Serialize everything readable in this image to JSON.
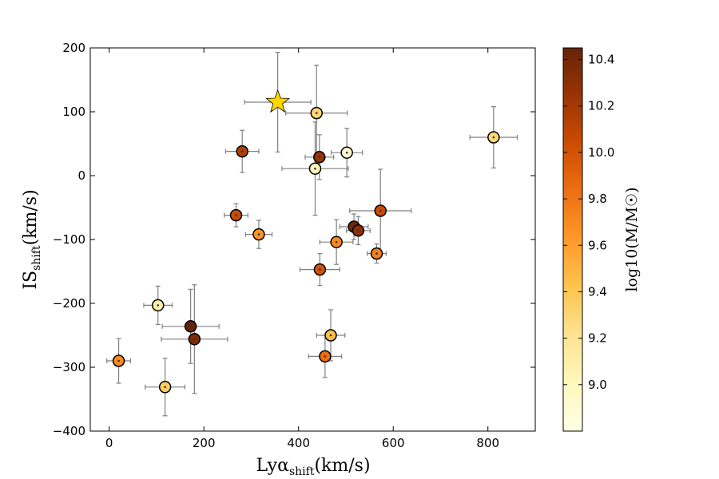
{
  "chart_data": {
    "type": "scatter",
    "title": "",
    "xlabel": {
      "main": "Lyα",
      "sub": "shift",
      "unit": "(km/s)"
    },
    "ylabel": {
      "main": "IS",
      "sub": "shift",
      "unit": "(km/s)"
    },
    "xlim": [
      -40,
      900
    ],
    "ylim": [
      -400,
      200
    ],
    "xticks": [
      0,
      200,
      400,
      600,
      800
    ],
    "xtick_labels": [
      "0",
      "200",
      "400",
      "600",
      "800"
    ],
    "yticks": [
      -400,
      -300,
      -200,
      -100,
      0,
      100,
      200
    ],
    "ytick_labels": [
      "−400",
      "−300",
      "−200",
      "−100",
      "0",
      "100",
      "200"
    ],
    "colorbar": {
      "label": "log10(M/M☉)",
      "range": [
        8.8,
        10.45
      ],
      "ticks": [
        9.0,
        9.2,
        9.4,
        9.6,
        9.8,
        10.0,
        10.2,
        10.4
      ],
      "tick_labels": [
        "9.0",
        "9.2",
        "9.4",
        "9.6",
        "9.8",
        "10.0",
        "10.2",
        "10.4"
      ],
      "colormap": "YlOrBr",
      "stops": [
        "#ffffe5",
        "#fff7bc",
        "#fee391",
        "#fec44f",
        "#fe9929",
        "#ec7014",
        "#cc4c02",
        "#993404",
        "#662506"
      ]
    },
    "grid": false,
    "points": [
      {
        "x": 20,
        "y": -290,
        "xerr": 25,
        "yerr": 35,
        "mass": 9.7
      },
      {
        "x": 103,
        "y": -203,
        "xerr": 30,
        "yerr": 30,
        "mass": 9.1
      },
      {
        "x": 118,
        "y": -331,
        "xerr": 42,
        "yerr": 45,
        "mass": 9.35
      },
      {
        "x": 172,
        "y": -236,
        "xerr": 60,
        "yerr": 58,
        "mass": 10.45
      },
      {
        "x": 180,
        "y": -256,
        "xerr": 70,
        "yerr": 85,
        "mass": 10.35
      },
      {
        "x": 268,
        "y": -62,
        "xerr": 25,
        "yerr": 18,
        "mass": 10.05
      },
      {
        "x": 281,
        "y": 38,
        "xerr": 35,
        "yerr": 33,
        "mass": 10.15
      },
      {
        "x": 316,
        "y": -92,
        "xerr": 28,
        "yerr": 22,
        "mass": 9.65
      },
      {
        "x": 435,
        "y": 11,
        "xerr": 70,
        "yerr": 73,
        "mass": 9.0
      },
      {
        "x": 438,
        "y": 98,
        "xerr": 65,
        "yerr": 75,
        "mass": 9.3
      },
      {
        "x": 444,
        "y": 29,
        "xerr": 30,
        "yerr": 35,
        "mass": 10.25
      },
      {
        "x": 445,
        "y": -147,
        "xerr": 42,
        "yerr": 25,
        "mass": 10.0
      },
      {
        "x": 456,
        "y": -283,
        "xerr": 35,
        "yerr": 33,
        "mass": 9.85
      },
      {
        "x": 468,
        "y": -250,
        "xerr": 30,
        "yerr": 40,
        "mass": 9.45
      },
      {
        "x": 480,
        "y": -104,
        "xerr": 35,
        "yerr": 35,
        "mass": 9.7
      },
      {
        "x": 502,
        "y": 36,
        "xerr": 33,
        "yerr": 38,
        "mass": 8.9
      },
      {
        "x": 517,
        "y": -80,
        "xerr": 30,
        "yerr": 20,
        "mass": 10.4
      },
      {
        "x": 526,
        "y": -86,
        "xerr": 25,
        "yerr": 22,
        "mass": 10.3
      },
      {
        "x": 565,
        "y": -122,
        "xerr": 20,
        "yerr": 15,
        "mass": 9.75
      },
      {
        "x": 573,
        "y": -55,
        "xerr": 65,
        "yerr": 65,
        "mass": 10.05
      },
      {
        "x": 812,
        "y": 60,
        "xerr": 50,
        "yerr": 48,
        "mass": 9.3
      }
    ],
    "highlight": {
      "marker": "star",
      "x": 356,
      "y": 115,
      "xerr": 70,
      "yerr": 78,
      "color": "#ffd700"
    }
  }
}
